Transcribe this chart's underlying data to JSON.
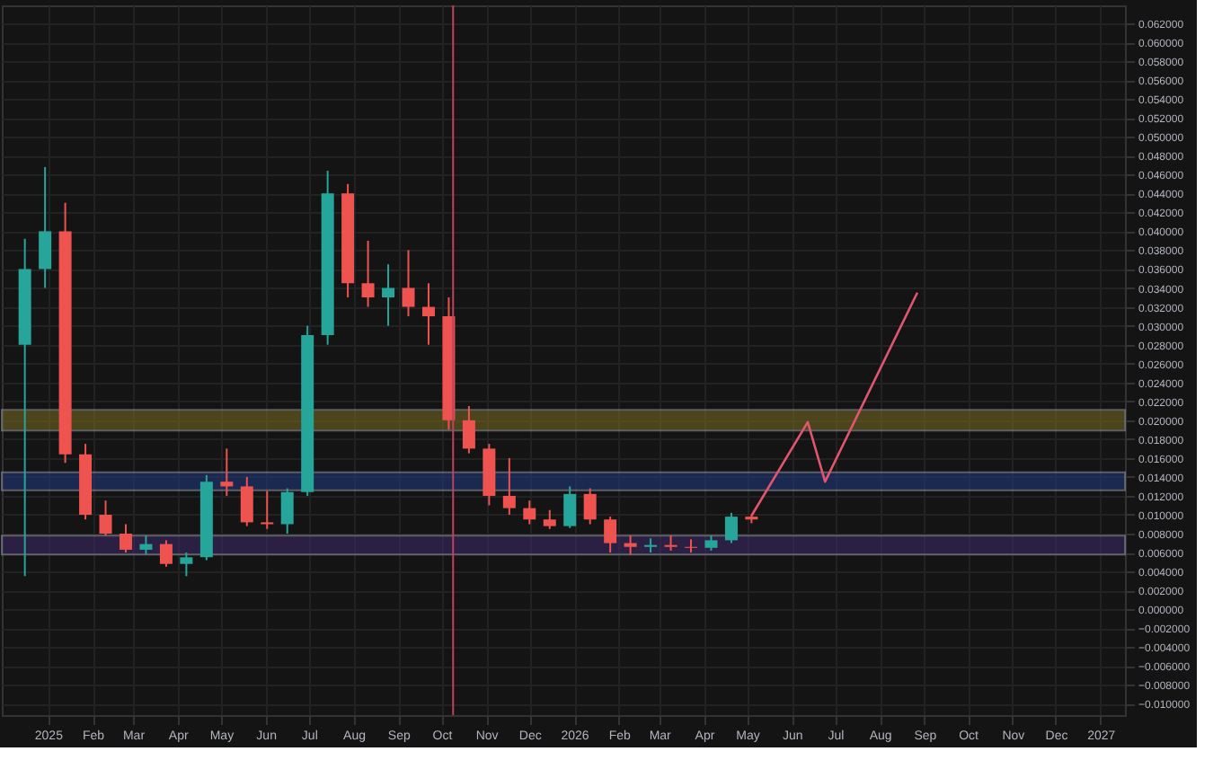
{
  "chart_data": {
    "type": "candlestick",
    "x": [
      "2024-12-16",
      "2024-12-30",
      "2025-01-13",
      "2025-01-27",
      "2025-02-10",
      "2025-02-24",
      "2025-03-10",
      "2025-03-24",
      "2025-04-07",
      "2025-04-21",
      "2025-05-05",
      "2025-05-19",
      "2025-06-02",
      "2025-06-16",
      "2025-06-30",
      "2025-07-14",
      "2025-07-28",
      "2025-08-11",
      "2025-08-25",
      "2025-09-08",
      "2025-09-22",
      "2025-10-06",
      "2025-10-20",
      "2025-11-03",
      "2025-11-17",
      "2025-12-01",
      "2025-12-15",
      "2025-12-29",
      "2026-01-12",
      "2026-01-26",
      "2026-02-09",
      "2026-02-23",
      "2026-03-09",
      "2026-03-23",
      "2026-04-06",
      "2026-04-20",
      "2026-05-04"
    ],
    "ohlc": [
      [
        0.028,
        0.0392,
        0.0035,
        0.036
      ],
      [
        0.036,
        0.0468,
        0.034,
        0.04
      ],
      [
        0.04,
        0.043,
        0.0155,
        0.0164
      ],
      [
        0.0164,
        0.0175,
        0.0095,
        0.01
      ],
      [
        0.01,
        0.0115,
        0.0078,
        0.008
      ],
      [
        0.008,
        0.009,
        0.006,
        0.0063
      ],
      [
        0.0063,
        0.0078,
        0.0058,
        0.0069
      ],
      [
        0.0069,
        0.0073,
        0.0045,
        0.0048
      ],
      [
        0.0048,
        0.006,
        0.0035,
        0.0055
      ],
      [
        0.0055,
        0.0142,
        0.0052,
        0.0135
      ],
      [
        0.0135,
        0.017,
        0.012,
        0.013
      ],
      [
        0.013,
        0.014,
        0.0088,
        0.0092
      ],
      [
        0.0092,
        0.0125,
        0.0085,
        0.009
      ],
      [
        0.009,
        0.0128,
        0.008,
        0.0124
      ],
      [
        0.0124,
        0.03,
        0.012,
        0.029
      ],
      [
        0.029,
        0.0464,
        0.028,
        0.044
      ],
      [
        0.044,
        0.045,
        0.033,
        0.0345
      ],
      [
        0.0345,
        0.039,
        0.032,
        0.033
      ],
      [
        0.033,
        0.0365,
        0.03,
        0.034
      ],
      [
        0.034,
        0.038,
        0.031,
        0.032
      ],
      [
        0.032,
        0.0345,
        0.028,
        0.031
      ],
      [
        0.031,
        0.033,
        0.019,
        0.02
      ],
      [
        0.02,
        0.0215,
        0.0165,
        0.017
      ],
      [
        0.017,
        0.0175,
        0.011,
        0.012
      ],
      [
        0.012,
        0.016,
        0.01,
        0.0107
      ],
      [
        0.0107,
        0.0115,
        0.009,
        0.0095
      ],
      [
        0.0095,
        0.0105,
        0.0085,
        0.0088
      ],
      [
        0.0088,
        0.013,
        0.0086,
        0.0122
      ],
      [
        0.0122,
        0.0128,
        0.009,
        0.0095
      ],
      [
        0.0095,
        0.0098,
        0.006,
        0.007
      ],
      [
        0.007,
        0.0078,
        0.0058,
        0.0066
      ],
      [
        0.0066,
        0.0075,
        0.006,
        0.0068
      ],
      [
        0.0068,
        0.0078,
        0.0062,
        0.0066
      ],
      [
        0.0066,
        0.0074,
        0.006,
        0.0065
      ],
      [
        0.0065,
        0.0078,
        0.0062,
        0.0073
      ],
      [
        0.0073,
        0.0102,
        0.007,
        0.0098
      ],
      [
        0.0098,
        0.01,
        0.0091,
        0.0095
      ]
    ],
    "colors": [
      "#26a69a",
      "#26a69a",
      "#ef5350",
      "#ef5350",
      "#ef5350",
      "#ef5350",
      "#26a69a",
      "#ef5350",
      "#26a69a",
      "#26a69a",
      "#ef5350",
      "#ef5350",
      "#ef5350",
      "#26a69a",
      "#26a69a",
      "#26a69a",
      "#ef5350",
      "#ef5350",
      "#26a69a",
      "#ef5350",
      "#ef5350",
      "#ef5350",
      "#ef5350",
      "#ef5350",
      "#ef5350",
      "#ef5350",
      "#ef5350",
      "#26a69a",
      "#ef5350",
      "#ef5350",
      "#ef5350",
      "#26a69a",
      "#ef5350",
      "#ef5350",
      "#26a69a",
      "#26a69a",
      "#ef5350"
    ],
    "series": [
      {
        "type": "line",
        "x": [
          "2026-05-04",
          "2026-06-12",
          "2026-06-24",
          "2026-08-27"
        ],
        "values": [
          0.0099,
          0.0198,
          0.0135,
          0.0335
        ],
        "color": "#e0566f"
      }
    ],
    "bands": [
      {
        "axis": "y",
        "from": 0.0189,
        "to": 0.0211,
        "color": "#7a6c22"
      },
      {
        "axis": "y",
        "from": 0.0126,
        "to": 0.0145,
        "color": "#223a80"
      },
      {
        "axis": "y",
        "from": 0.0058,
        "to": 0.0078,
        "color": "#3e2a6a"
      }
    ],
    "ref_lines": [
      {
        "axis": "x",
        "value": "2025-10-09",
        "color": "#c0405e"
      }
    ],
    "xlim": [
      "2024-11-30",
      "2027-01-18"
    ],
    "xticks": [
      {
        "value": "2025-01-01",
        "label": "2025"
      },
      {
        "value": "2025-02-01",
        "label": "Feb"
      },
      {
        "value": "2025-03-01",
        "label": "Mar"
      },
      {
        "value": "2025-04-01",
        "label": "Apr"
      },
      {
        "value": "2025-05-01",
        "label": "May"
      },
      {
        "value": "2025-06-01",
        "label": "Jun"
      },
      {
        "value": "2025-07-01",
        "label": "Jul"
      },
      {
        "value": "2025-08-01",
        "label": "Aug"
      },
      {
        "value": "2025-09-01",
        "label": "Sep"
      },
      {
        "value": "2025-10-01",
        "label": "Oct"
      },
      {
        "value": "2025-11-01",
        "label": "Nov"
      },
      {
        "value": "2025-12-01",
        "label": "Dec"
      },
      {
        "value": "2026-01-01",
        "label": "2026"
      },
      {
        "value": "2026-02-01",
        "label": "Feb"
      },
      {
        "value": "2026-03-01",
        "label": "Mar"
      },
      {
        "value": "2026-04-01",
        "label": "Apr"
      },
      {
        "value": "2026-05-01",
        "label": "May"
      },
      {
        "value": "2026-06-01",
        "label": "Jun"
      },
      {
        "value": "2026-07-01",
        "label": "Jul"
      },
      {
        "value": "2026-08-01",
        "label": "Aug"
      },
      {
        "value": "2026-09-01",
        "label": "Sep"
      },
      {
        "value": "2026-10-01",
        "label": "Oct"
      },
      {
        "value": "2026-11-01",
        "label": "Nov"
      },
      {
        "value": "2026-12-01",
        "label": "Dec"
      },
      {
        "value": "2027-01-01",
        "label": "2027"
      }
    ],
    "ylim": [
      -0.0112,
      0.0639
    ],
    "yticks": [
      {
        "value": 0.062,
        "label": "0.062000"
      },
      {
        "value": 0.06,
        "label": "0.060000"
      },
      {
        "value": 0.058,
        "label": "0.058000"
      },
      {
        "value": 0.056,
        "label": "0.056000"
      },
      {
        "value": 0.054,
        "label": "0.054000"
      },
      {
        "value": 0.052,
        "label": "0.052000"
      },
      {
        "value": 0.05,
        "label": "0.050000"
      },
      {
        "value": 0.048,
        "label": "0.048000"
      },
      {
        "value": 0.046,
        "label": "0.046000"
      },
      {
        "value": 0.044,
        "label": "0.044000"
      },
      {
        "value": 0.042,
        "label": "0.042000"
      },
      {
        "value": 0.04,
        "label": "0.040000"
      },
      {
        "value": 0.038,
        "label": "0.038000"
      },
      {
        "value": 0.036,
        "label": "0.036000"
      },
      {
        "value": 0.034,
        "label": "0.034000"
      },
      {
        "value": 0.032,
        "label": "0.032000"
      },
      {
        "value": 0.03,
        "label": "0.030000"
      },
      {
        "value": 0.028,
        "label": "0.028000"
      },
      {
        "value": 0.026,
        "label": "0.026000"
      },
      {
        "value": 0.024,
        "label": "0.024000"
      },
      {
        "value": 0.022,
        "label": "0.022000"
      },
      {
        "value": 0.02,
        "label": "0.020000"
      },
      {
        "value": 0.018,
        "label": "0.018000"
      },
      {
        "value": 0.016,
        "label": "0.016000"
      },
      {
        "value": 0.014,
        "label": "0.014000"
      },
      {
        "value": 0.012,
        "label": "0.012000"
      },
      {
        "value": 0.01,
        "label": "0.010000"
      },
      {
        "value": 0.008,
        "label": "0.008000"
      },
      {
        "value": 0.006,
        "label": "0.006000"
      },
      {
        "value": 0.004,
        "label": "0.004000"
      },
      {
        "value": 0.002,
        "label": "0.002000"
      },
      {
        "value": 0,
        "label": "0.000000"
      },
      {
        "value": -0.002,
        "label": "−0.002000"
      },
      {
        "value": -0.004,
        "label": "−0.004000"
      },
      {
        "value": -0.006,
        "label": "−0.006000"
      },
      {
        "value": -0.008,
        "label": "−0.008000"
      },
      {
        "value": -0.01,
        "label": "−0.010000"
      }
    ],
    "grid": true
  }
}
